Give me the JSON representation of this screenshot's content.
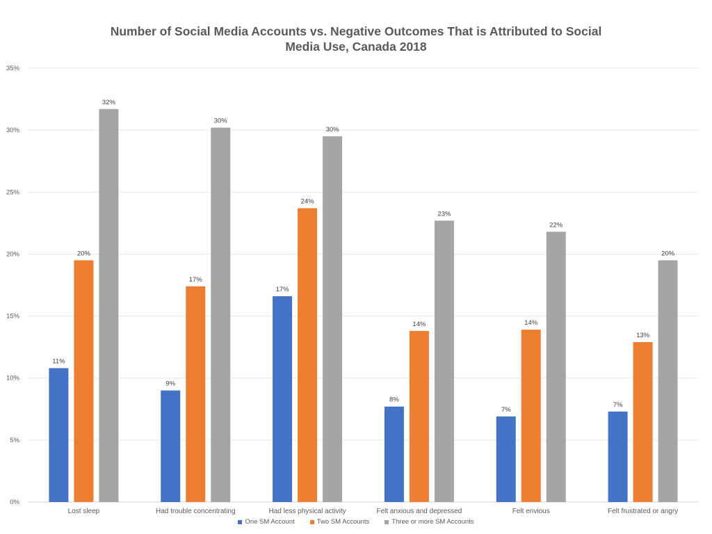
{
  "chart_data": {
    "type": "bar",
    "title_lines": [
      "Number of Social Media Accounts vs. Negative Outcomes That is Attributed to Social",
      "Media Use,  Canada 2018"
    ],
    "categories": [
      "Lost sleep",
      "Had trouble concentrating",
      "Had less physical activity",
      "Felt anxious and depressed",
      "Felt envious",
      "Felt frustrated or angry"
    ],
    "series": [
      {
        "name": "One SM Account",
        "color": "#4472C4",
        "values": [
          10.8,
          9.0,
          16.6,
          7.7,
          6.9,
          7.3
        ],
        "labels": [
          "11%",
          "9%",
          "17%",
          "8%",
          "7%",
          "7%"
        ]
      },
      {
        "name": "Two SM Accounts",
        "color": "#ED7D31",
        "values": [
          19.5,
          17.4,
          23.7,
          13.8,
          13.9,
          12.9
        ],
        "labels": [
          "20%",
          "17%",
          "24%",
          "14%",
          "14%",
          "13%"
        ]
      },
      {
        "name": "Three or more SM Accounts",
        "color": "#A5A5A5",
        "values": [
          31.7,
          30.2,
          29.5,
          22.7,
          21.8,
          19.5
        ],
        "labels": [
          "32%",
          "30%",
          "30%",
          "23%",
          "22%",
          "20%"
        ]
      }
    ],
    "y_ticks": [
      "0%",
      "5%",
      "10%",
      "15%",
      "20%",
      "25%",
      "30%",
      "35%"
    ],
    "ylim": [
      0,
      35
    ],
    "grid": true,
    "legend_position": "bottom"
  }
}
